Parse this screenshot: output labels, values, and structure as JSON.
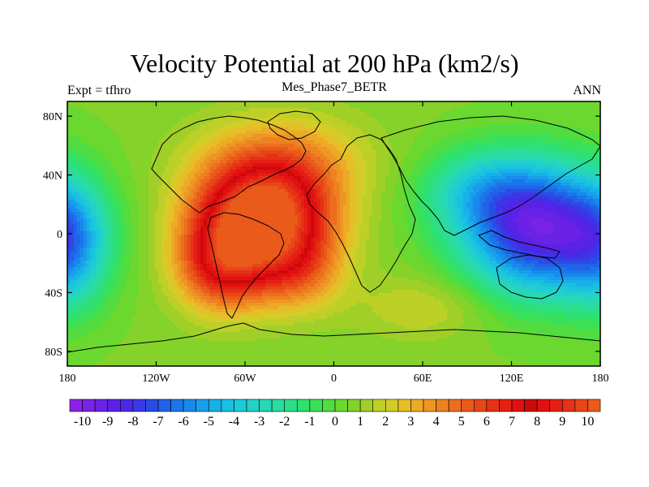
{
  "chart_data": {
    "type": "heatmap",
    "title": "Velocity Potential at 200 hPa (km2/s)",
    "subtitle_left": "Expt = tfhro",
    "subtitle_center": "Mes_Phase7_BETR",
    "subtitle_right": "ANN",
    "xlim": [
      -180,
      180
    ],
    "ylim": [
      -90,
      90
    ],
    "x_ticks": [
      {
        "value": -180,
        "label": "180"
      },
      {
        "value": -120,
        "label": "120W"
      },
      {
        "value": -60,
        "label": "60W"
      },
      {
        "value": 0,
        "label": "0"
      },
      {
        "value": 60,
        "label": "60E"
      },
      {
        "value": 120,
        "label": "120E"
      },
      {
        "value": 180,
        "label": "180"
      }
    ],
    "y_ticks": [
      {
        "value": 80,
        "label": "80N"
      },
      {
        "value": 40,
        "label": "40N"
      },
      {
        "value": 0,
        "label": "0"
      },
      {
        "value": -40,
        "label": "40S"
      },
      {
        "value": -80,
        "label": "80S"
      }
    ],
    "colorbar": {
      "min": -10.5,
      "max": 10.5,
      "step": 0.5,
      "labels": [
        "-10",
        "-9",
        "-8",
        "-7",
        "-6",
        "-5",
        "-4",
        "-3",
        "-2",
        "-1",
        "0",
        "1",
        "2",
        "3",
        "4",
        "5",
        "6",
        "7",
        "8",
        "9",
        "10"
      ],
      "colors": [
        "#8a22e6",
        "#7a22e6",
        "#6a22e6",
        "#5a22e6",
        "#4a28e6",
        "#3a38e6",
        "#2a4ce6",
        "#2062e8",
        "#1a76ea",
        "#188aec",
        "#189eec",
        "#18b0e8",
        "#1ac0e0",
        "#1ecad8",
        "#22d2c8",
        "#26d8b4",
        "#2adca0",
        "#2cde88",
        "#2ee070",
        "#3ae058",
        "#52dc40",
        "#6ad82e",
        "#84d22a",
        "#a0d028",
        "#bcd028",
        "#d4cc28",
        "#e6be28",
        "#ecaa26",
        "#ee9624",
        "#ee8222",
        "#ec6e1e",
        "#ea5a1a",
        "#e84618",
        "#e63216",
        "#e42014",
        "#e21012",
        "#cc0a0a",
        "#e21012",
        "#e42014",
        "#e63216",
        "#e84618",
        "#ea5a1a"
      ]
    },
    "field_centers": [
      {
        "lon": -48,
        "lat": 12,
        "value": 10.2,
        "sx": 32,
        "sy": 25
      },
      {
        "lon": -75,
        "lat": -22,
        "value": 6,
        "sx": 22,
        "sy": 22
      },
      {
        "lon": -25,
        "lat": -25,
        "value": 3.5,
        "sx": 22,
        "sy": 20
      },
      {
        "lon": -35,
        "lat": 50,
        "value": 3,
        "sx": 40,
        "sy": 22
      },
      {
        "lon": 140,
        "lat": 2,
        "value": -9.5,
        "sx": 36,
        "sy": 30
      },
      {
        "lon": 100,
        "lat": 30,
        "value": -3,
        "sx": 30,
        "sy": 20
      },
      {
        "lon": -178,
        "lat": -10,
        "value": -3.5,
        "sx": 18,
        "sy": 30
      },
      {
        "lon": 60,
        "lat": -50,
        "value": 1.5,
        "sx": 30,
        "sy": 15
      }
    ]
  }
}
